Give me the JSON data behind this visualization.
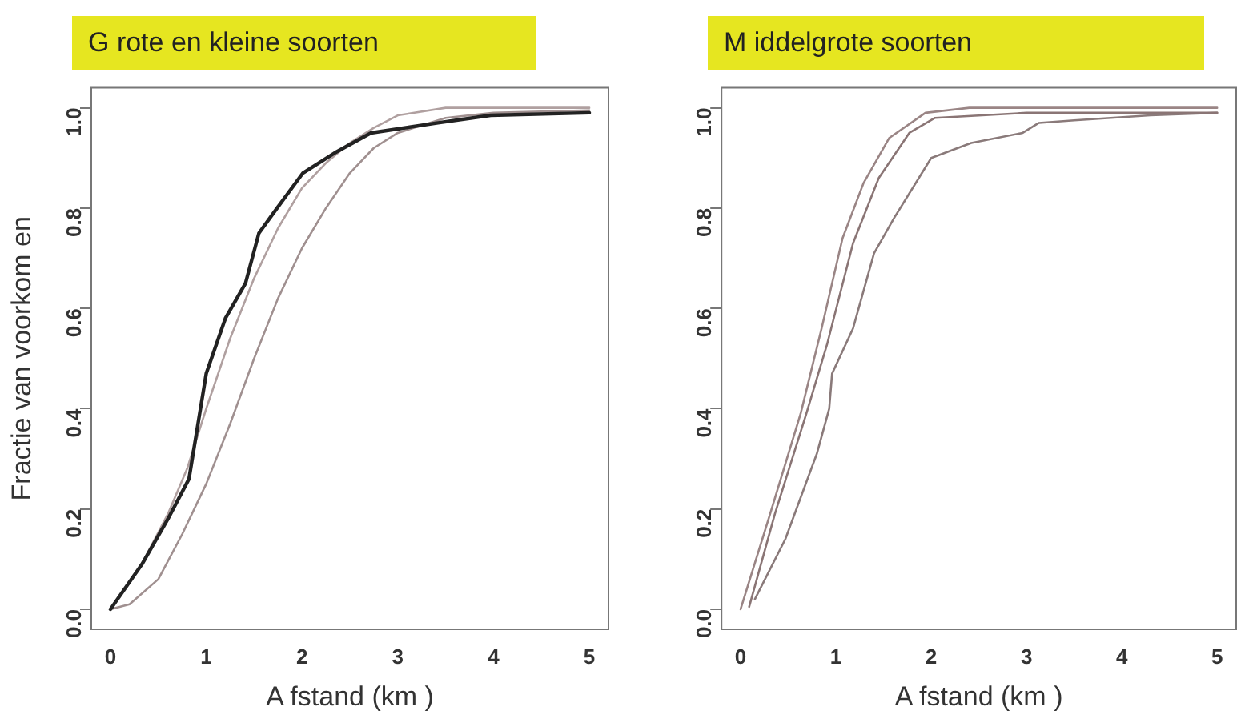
{
  "chart_data": [
    {
      "type": "line",
      "title": "G rote en kleine soorten",
      "xlabel": "A fstand (km )",
      "ylabel": "Fractie van voorkom en",
      "xlim": [
        -0.2,
        5.2
      ],
      "ylim": [
        -0.04,
        1.04
      ],
      "xticks": [
        0,
        1,
        2,
        3,
        4,
        5
      ],
      "yticks": [
        {
          "value": 0,
          "label": "0.0"
        },
        {
          "value": 0.2,
          "label": "0.2"
        },
        {
          "value": 0.4,
          "label": "0.4"
        },
        {
          "value": 0.6,
          "label": "0.6"
        },
        {
          "value": 0.8,
          "label": "0.8"
        },
        {
          "value": 1,
          "label": "1.0"
        }
      ],
      "grid": false,
      "legend": false,
      "marker": "none",
      "line_style": "solid",
      "series": [
        {
          "color": "#222222",
          "x": [
            0,
            0.33,
            0.6,
            0.82,
            1.0,
            1.2,
            1.41,
            1.55,
            1.74,
            2.01,
            2.34,
            2.72,
            3.42,
            3.97,
            5
          ],
          "values": [
            0,
            0.09,
            0.18,
            0.26,
            0.47,
            0.58,
            0.65,
            0.75,
            0.8,
            0.87,
            0.91,
            0.95,
            0.97,
            0.985,
            0.99
          ]
        },
        {
          "color": "#b0a0a0",
          "x": [
            0,
            0.3,
            0.6,
            0.8,
            1.0,
            1.25,
            1.5,
            1.75,
            2.0,
            2.25,
            2.5,
            2.75,
            3,
            3.5,
            5
          ],
          "values": [
            0,
            0.08,
            0.19,
            0.28,
            0.4,
            0.54,
            0.66,
            0.76,
            0.84,
            0.89,
            0.93,
            0.96,
            0.985,
            1.0,
            1.0
          ]
        },
        {
          "color": "#a09090",
          "x": [
            0,
            0.2,
            0.5,
            0.75,
            1.0,
            1.25,
            1.5,
            1.75,
            2.0,
            2.25,
            2.5,
            2.75,
            3,
            3.5,
            4,
            5
          ],
          "values": [
            0,
            0.01,
            0.06,
            0.15,
            0.25,
            0.37,
            0.5,
            0.62,
            0.72,
            0.8,
            0.87,
            0.92,
            0.95,
            0.98,
            0.99,
            0.995
          ]
        }
      ]
    },
    {
      "type": "line",
      "title": "M iddelgrote soorten",
      "xlabel": "A fstand (km )",
      "xlim": [
        -0.2,
        5.2
      ],
      "ylim": [
        -0.04,
        1.04
      ],
      "xticks": [
        0,
        1,
        2,
        3,
        4,
        5
      ],
      "yticks": [
        {
          "value": 0,
          "label": "0.0"
        },
        {
          "value": 0.2,
          "label": "0.2"
        },
        {
          "value": 0.4,
          "label": "0.4"
        },
        {
          "value": 0.6,
          "label": "0.6"
        },
        {
          "value": 0.8,
          "label": "0.8"
        },
        {
          "value": 1,
          "label": "1.0"
        }
      ],
      "grid": false,
      "legend": false,
      "marker": "none",
      "line_style": "solid",
      "series": [
        {
          "color": "#9a8585",
          "x": [
            0,
            0.31,
            0.63,
            0.85,
            1.07,
            1.29,
            1.56,
            1.94,
            2.4,
            5
          ],
          "values": [
            0,
            0.19,
            0.39,
            0.56,
            0.74,
            0.85,
            0.94,
            0.99,
            1.0,
            1.0
          ]
        },
        {
          "color": "#8a7575",
          "x": [
            0.09,
            0.36,
            0.69,
            0.91,
            1.18,
            1.45,
            1.77,
            2.04,
            3,
            5
          ],
          "values": [
            0.005,
            0.19,
            0.39,
            0.53,
            0.73,
            0.86,
            0.95,
            0.98,
            0.99,
            0.99
          ]
        },
        {
          "color": "#8a7a7a",
          "x": [
            0.15,
            0.47,
            0.8,
            0.93,
            0.96,
            1.18,
            1.4,
            1.61,
            2.0,
            2.42,
            2.96,
            3.13,
            3.5,
            4.3,
            5
          ],
          "values": [
            0.02,
            0.14,
            0.31,
            0.4,
            0.47,
            0.56,
            0.71,
            0.78,
            0.9,
            0.93,
            0.95,
            0.97,
            0.975,
            0.985,
            0.99
          ]
        }
      ]
    }
  ]
}
